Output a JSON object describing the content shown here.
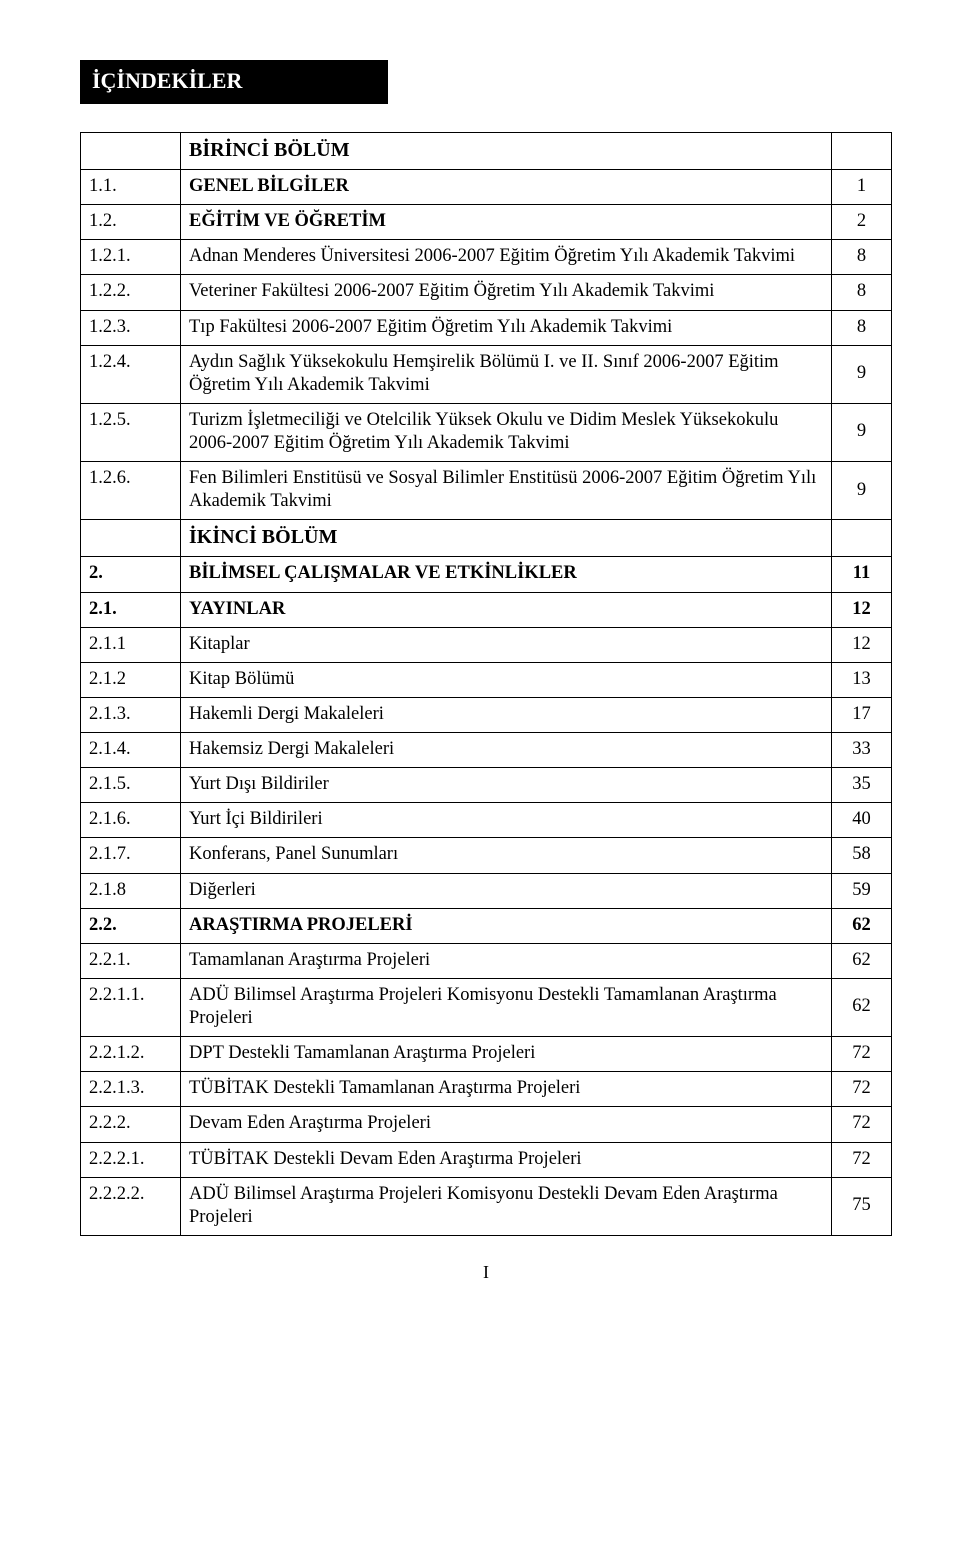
{
  "header": "İÇİNDEKİLER",
  "rows": [
    {
      "num": "",
      "text": "BİRİNCİ BÖLÜM",
      "page": "",
      "numBold": false,
      "textBold": true,
      "section": true
    },
    {
      "num": "1.1.",
      "text": "GENEL BİLGİLER",
      "page": "1",
      "numBold": false,
      "textBold": true
    },
    {
      "num": "1.2.",
      "text": "EĞİTİM VE ÖĞRETİM",
      "page": "2",
      "numBold": false,
      "textBold": true
    },
    {
      "num": "1.2.1.",
      "text": "Adnan Menderes Üniversitesi 2006-2007 Eğitim Öğretim Yılı Akademik Takvimi",
      "page": "8"
    },
    {
      "num": "1.2.2.",
      "text": "Veteriner Fakültesi 2006-2007 Eğitim Öğretim Yılı Akademik Takvimi",
      "page": "8"
    },
    {
      "num": "1.2.3.",
      "text": "Tıp Fakültesi 2006-2007 Eğitim Öğretim Yılı Akademik Takvimi",
      "page": "8"
    },
    {
      "num": "1.2.4.",
      "text": "Aydın Sağlık Yüksekokulu Hemşirelik Bölümü I. ve II. Sınıf 2006-2007 Eğitim Öğretim Yılı Akademik Takvimi",
      "page": "9"
    },
    {
      "num": "1.2.5.",
      "text": "Turizm İşletmeciliği ve Otelcilik Yüksek Okulu ve Didim Meslek Yüksekokulu 2006-2007 Eğitim Öğretim Yılı Akademik Takvimi",
      "page": "9"
    },
    {
      "num": "1.2.6.",
      "text": "Fen Bilimleri Enstitüsü ve Sosyal Bilimler Enstitüsü 2006-2007 Eğitim Öğretim Yılı Akademik Takvimi",
      "page": "9"
    },
    {
      "num": "",
      "text": "İKİNCİ BÖLÜM",
      "page": "",
      "numBold": false,
      "textBold": true,
      "section": true
    },
    {
      "num": "2.",
      "text": "BİLİMSEL ÇALIŞMALAR VE ETKİNLİKLER",
      "page": "11",
      "numBold": true,
      "textBold": true,
      "pageBold": true
    },
    {
      "num": "2.1.",
      "text": "YAYINLAR",
      "page": "12",
      "numBold": true,
      "textBold": true,
      "pageBold": true
    },
    {
      "num": "2.1.1",
      "text": "Kitaplar",
      "page": "12"
    },
    {
      "num": "2.1.2",
      "text": "Kitap Bölümü",
      "page": "13"
    },
    {
      "num": "2.1.3.",
      "text": "Hakemli Dergi Makaleleri",
      "page": "17"
    },
    {
      "num": "2.1.4.",
      "text": "Hakemsiz Dergi Makaleleri",
      "page": "33"
    },
    {
      "num": "2.1.5.",
      "text": "Yurt Dışı Bildiriler",
      "page": "35"
    },
    {
      "num": "2.1.6.",
      "text": "Yurt İçi Bildirileri",
      "page": "40"
    },
    {
      "num": "2.1.7.",
      "text": "Konferans, Panel Sunumları",
      "page": "58"
    },
    {
      "num": "2.1.8",
      "text": "Diğerleri",
      "page": "59"
    },
    {
      "num": "2.2.",
      "text": "ARAŞTIRMA PROJELERİ",
      "page": "62",
      "numBold": true,
      "textBold": true,
      "pageBold": true
    },
    {
      "num": "2.2.1.",
      "text": "Tamamlanan Araştırma Projeleri",
      "page": "62"
    },
    {
      "num": "2.2.1.1.",
      "text": "ADÜ Bilimsel Araştırma Projeleri Komisyonu Destekli Tamamlanan Araştırma Projeleri",
      "page": "62"
    },
    {
      "num": "2.2.1.2.",
      "text": "DPT Destekli Tamamlanan Araştırma Projeleri",
      "page": "72"
    },
    {
      "num": "2.2.1.3.",
      "text": "TÜBİTAK Destekli Tamamlanan Araştırma Projeleri",
      "page": "72"
    },
    {
      "num": "2.2.2.",
      "text": "Devam Eden Araştırma Projeleri",
      "page": "72"
    },
    {
      "num": "2.2.2.1.",
      "text": "TÜBİTAK Destekli Devam Eden Araştırma Projeleri",
      "page": "72"
    },
    {
      "num": "2.2.2.2.",
      "text": "ADÜ Bilimsel Araştırma Projeleri Komisyonu Destekli Devam Eden Araştırma Projeleri",
      "page": "75"
    }
  ],
  "footer": "I"
}
